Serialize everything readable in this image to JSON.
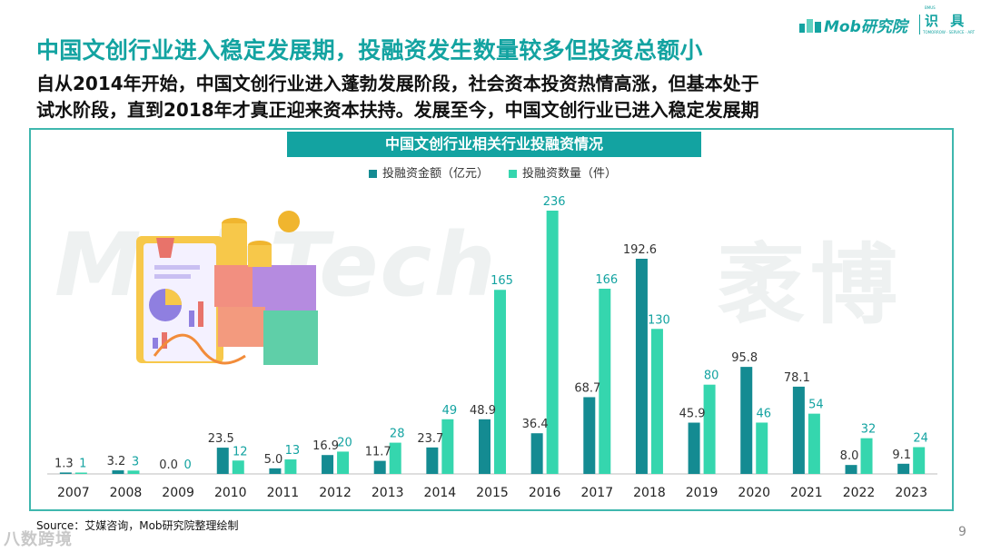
{
  "header": {
    "headline": "中国文创行业进入稳定发展期，投融资发生数量较多但投资总额小",
    "subtitle_line1": "自从2014年开始，中国文创行业进入蓬勃发展阶段，社会资本投资热情高涨，但基本处于",
    "subtitle_line2": "试水阶段，直到2018年才真正迎来资本扶持。发展至今，中国文创行业已进入稳定发展期"
  },
  "logo": {
    "brand": "Mob研究院",
    "side_text": "识 具",
    "tiny_top": "BMUS",
    "tiny_bottom": "TOMORROW · SERVICE · ART"
  },
  "watermark": {
    "latin": "MobTech",
    "chinese": "袤博"
  },
  "colors": {
    "accent": "#13a3a1",
    "series_amount": "#148b92",
    "series_count": "#35d6ae",
    "frame": "#3fb7ae"
  },
  "chart_data": {
    "type": "bar",
    "title": "中国文创行业相关行业投融资情况",
    "categories": [
      "2007",
      "2008",
      "2009",
      "2010",
      "2011",
      "2012",
      "2013",
      "2014",
      "2015",
      "2016",
      "2017",
      "2018",
      "2019",
      "2020",
      "2021",
      "2022",
      "2023"
    ],
    "series": [
      {
        "name": "投融资金额（亿元）",
        "color": "#148b92",
        "values": [
          1.3,
          3.2,
          0.0,
          23.5,
          5.0,
          16.9,
          11.7,
          23.7,
          48.9,
          36.4,
          68.7,
          192.6,
          45.9,
          95.8,
          78.1,
          8.0,
          9.1
        ],
        "labels": [
          "1.3",
          "3.2",
          "0.0",
          "23.5",
          "5.0",
          "16.9",
          "11.7",
          "23.7",
          "48.9",
          "36.4",
          "68.7",
          "192.6",
          "45.9",
          "95.8",
          "78.1",
          "8.0",
          "9.1"
        ]
      },
      {
        "name": "投融资数量（件）",
        "color": "#35d6ae",
        "values": [
          1,
          3,
          0,
          12,
          13,
          20,
          28,
          49,
          165,
          236,
          166,
          130,
          80,
          46,
          54,
          32,
          24
        ],
        "labels": [
          "1",
          "3",
          "0",
          "12",
          "13",
          "20",
          "28",
          "49",
          "165",
          "236",
          "166",
          "130",
          "80",
          "46",
          "54",
          "32",
          "24"
        ]
      }
    ],
    "legend": "top-center",
    "grid": false,
    "xlabel": "",
    "ylabel": ""
  },
  "footer": {
    "source": "Source：艾媒咨询，Mob研究院整理绘制",
    "page_number": "9",
    "corner_watermark": "八数跨境"
  }
}
